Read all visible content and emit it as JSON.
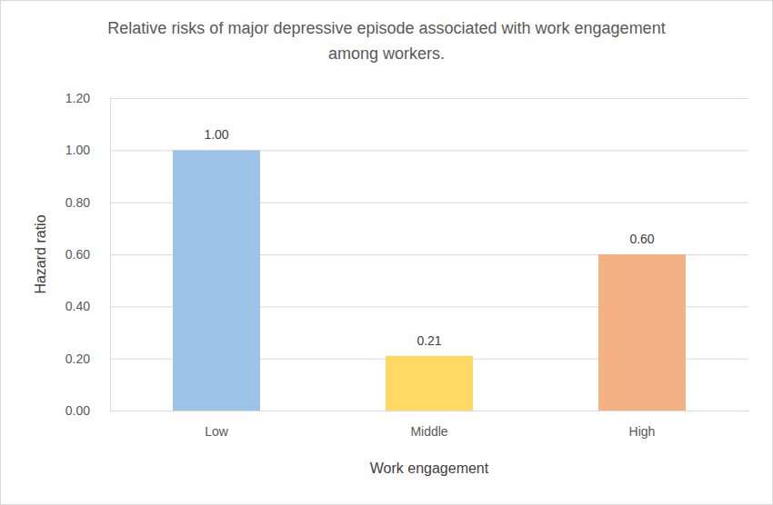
{
  "chart_data": {
    "type": "bar",
    "title": "Relative risks of major depressive episode associated with work engagement among workers.",
    "x_label": "Work engagement",
    "y_label": "Hazard ratio",
    "categories": [
      "Low",
      "Middle",
      "High"
    ],
    "values": [
      1,
      0.21,
      0.6
    ],
    "value_labels": [
      "1.00",
      "0.21",
      "0.60"
    ],
    "colors": [
      "#9dc3e6",
      "#ffd966",
      "#f4b183"
    ],
    "ylim": [
      0,
      1.2
    ],
    "yticks": [
      {
        "value": 0,
        "label": "0.00"
      },
      {
        "value": 0.2,
        "label": "0.20"
      },
      {
        "value": 0.4,
        "label": "0.40"
      },
      {
        "value": 0.6,
        "label": "0.60"
      },
      {
        "value": 0.8,
        "label": "0.80"
      },
      {
        "value": 1,
        "label": "1.00"
      },
      {
        "value": 1.2,
        "label": "1.20"
      }
    ],
    "grid": true,
    "data_labels": true
  }
}
